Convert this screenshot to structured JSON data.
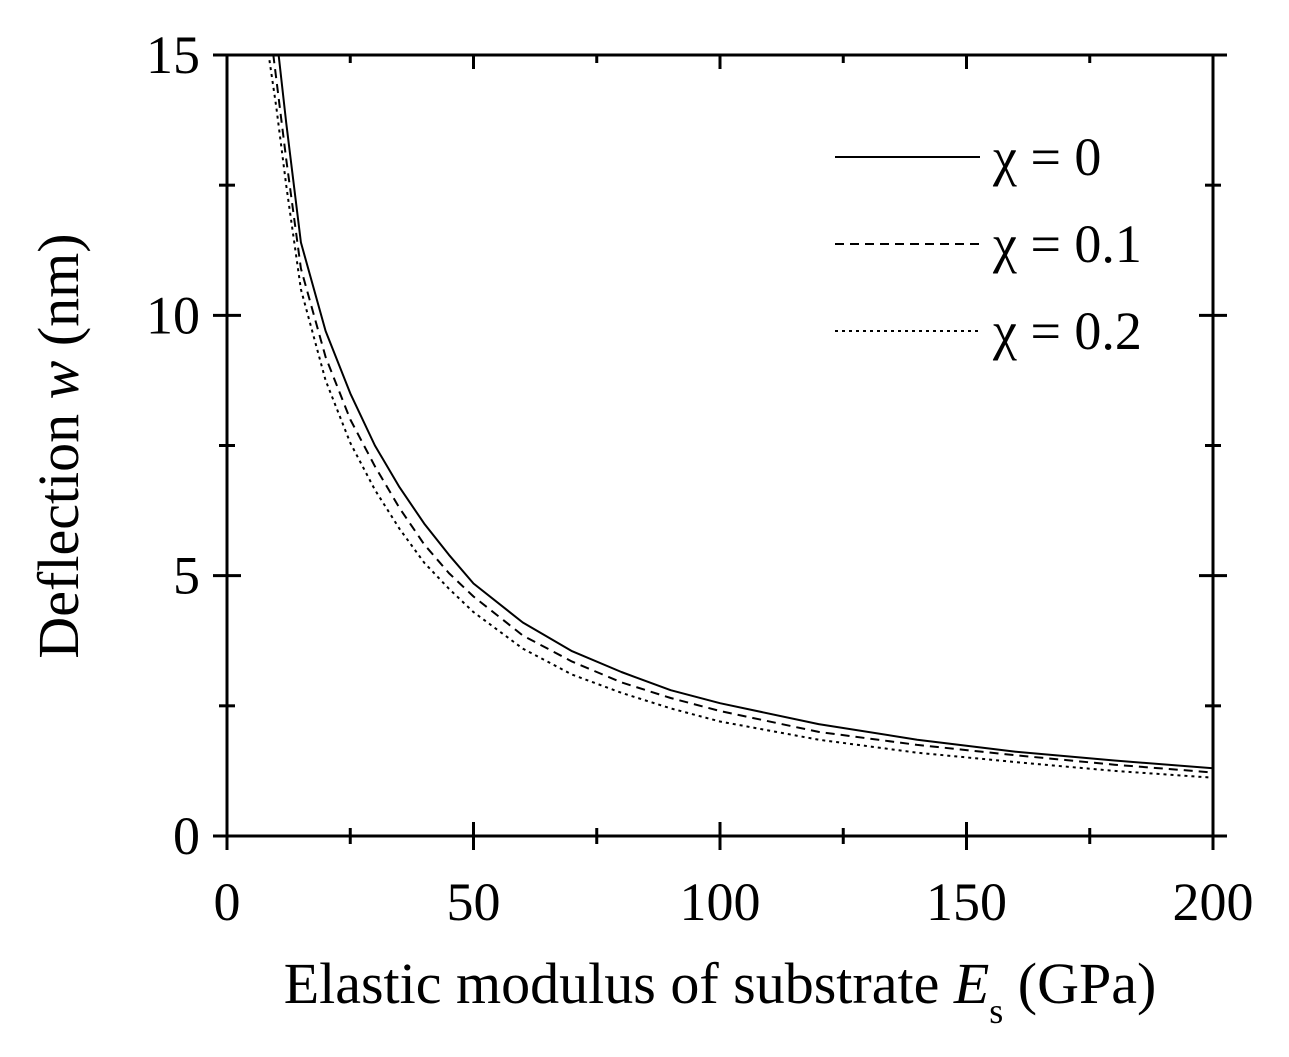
{
  "chart_data": {
    "type": "line",
    "title": "",
    "xlabel": {
      "main": "Elastic modulus of substrate ",
      "symbol": "E",
      "sub": "s",
      "unit": " (GPa)"
    },
    "ylabel": {
      "main": "Deflection ",
      "symbol": "w",
      "unit": " (nm)"
    },
    "xlim": [
      0,
      200
    ],
    "ylim": [
      0,
      15
    ],
    "xticks": [
      0,
      50,
      100,
      150,
      200
    ],
    "yticks": [
      0,
      5,
      10,
      15
    ],
    "grid": false,
    "legend_position": "top-right",
    "series": [
      {
        "name": "χ = 0",
        "line_style": "solid",
        "x": [
          10,
          12,
          15,
          20,
          25,
          30,
          35,
          40,
          45,
          50,
          60,
          70,
          80,
          90,
          100,
          120,
          140,
          160,
          180,
          200
        ],
        "y": [
          15.4,
          13.7,
          11.4,
          9.7,
          8.5,
          7.5,
          6.7,
          6.0,
          5.4,
          4.85,
          4.1,
          3.55,
          3.15,
          2.8,
          2.55,
          2.15,
          1.85,
          1.62,
          1.45,
          1.3
        ]
      },
      {
        "name": "χ = 0.1",
        "line_style": "dashed",
        "x": [
          9,
          12,
          15,
          20,
          25,
          30,
          35,
          40,
          45,
          50,
          60,
          70,
          80,
          90,
          100,
          120,
          140,
          160,
          180,
          200
        ],
        "y": [
          15.3,
          13.0,
          10.9,
          9.2,
          8.0,
          7.1,
          6.3,
          5.6,
          5.05,
          4.6,
          3.85,
          3.35,
          2.95,
          2.65,
          2.4,
          2.0,
          1.75,
          1.55,
          1.37,
          1.22
        ]
      },
      {
        "name": "χ = 0.2",
        "line_style": "dotted",
        "x": [
          8,
          10,
          12,
          15,
          20,
          25,
          30,
          35,
          40,
          45,
          50,
          60,
          70,
          80,
          90,
          100,
          120,
          140,
          160,
          180,
          200
        ],
        "y": [
          15.3,
          14.0,
          12.5,
          10.5,
          8.75,
          7.55,
          6.65,
          5.9,
          5.25,
          4.75,
          4.3,
          3.6,
          3.1,
          2.75,
          2.45,
          2.2,
          1.85,
          1.6,
          1.42,
          1.25,
          1.12
        ]
      }
    ]
  }
}
